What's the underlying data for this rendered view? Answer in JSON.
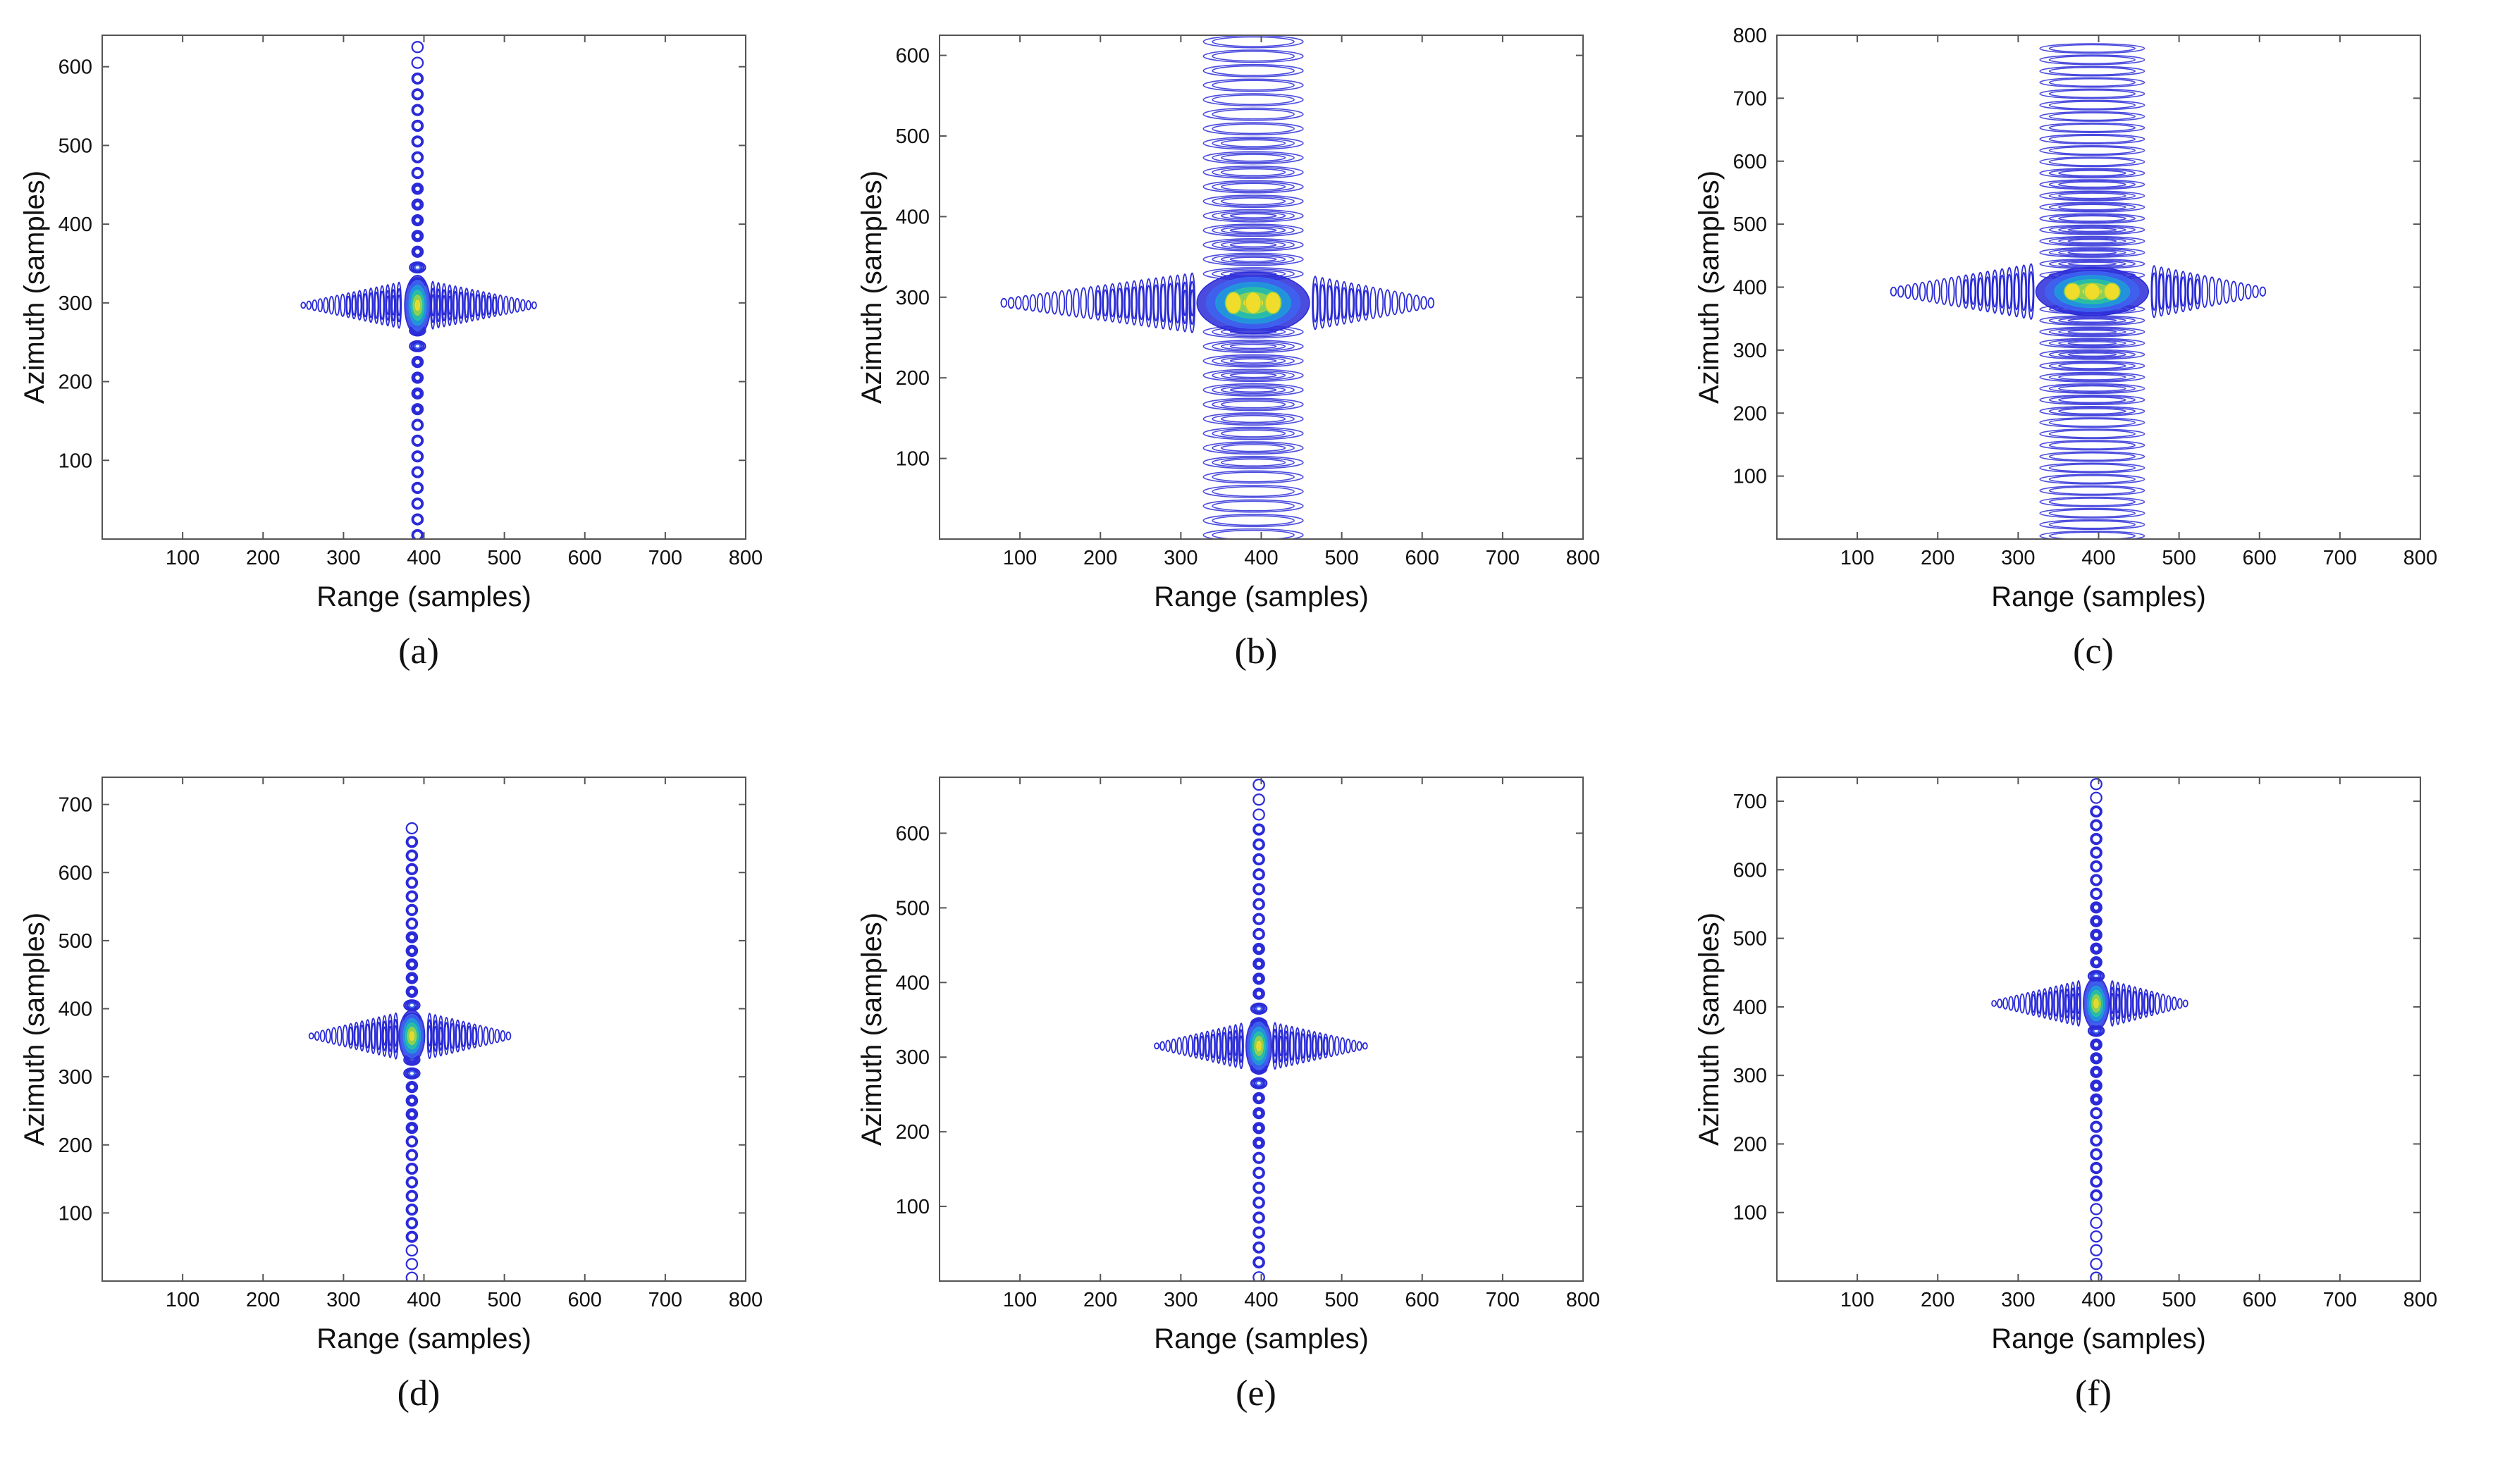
{
  "chart_data": [
    {
      "panel": "a",
      "type": "contour",
      "caption": "(a)",
      "xlabel": "Range (samples)",
      "ylabel": "Azimuth (samples)",
      "xlim": [
        0,
        800
      ],
      "ylim": [
        0,
        640
      ],
      "xticks": [
        100,
        200,
        300,
        400,
        500,
        600,
        700,
        800
      ],
      "yticks": [
        100,
        200,
        300,
        400,
        500,
        600
      ],
      "peak": {
        "x": 392,
        "y": 297
      },
      "range_sidelobe_extent": [
        250,
        540
      ],
      "azimuth_sidelobe_extent": [
        5,
        630
      ],
      "colormap": [
        "#2b2bd8",
        "#3d63f0",
        "#1f9bd8",
        "#29c2a0",
        "#9ad34a",
        "#f0dc2a"
      ]
    },
    {
      "panel": "b",
      "type": "contour",
      "caption": "(b)",
      "xlabel": "Range (samples)",
      "ylabel": "Azimuth (samples)",
      "xlim": [
        0,
        800
      ],
      "ylim": [
        0,
        625
      ],
      "xticks": [
        100,
        200,
        300,
        400,
        500,
        600,
        700,
        800
      ],
      "yticks": [
        100,
        200,
        300,
        400,
        500,
        600
      ],
      "peak": {
        "x": 390,
        "y": 293
      },
      "range_sidelobe_extent": [
        80,
        615
      ],
      "azimuth_sidelobe_extent": [
        5,
        620
      ],
      "colormap": [
        "#2b2bd8",
        "#3d63f0",
        "#1f9bd8",
        "#29c2a0",
        "#9ad34a",
        "#f0dc2a"
      ]
    },
    {
      "panel": "c",
      "type": "contour",
      "caption": "(c)",
      "xlabel": "Range (samples)",
      "ylabel": "Azimuth (samples)",
      "xlim": [
        0,
        800
      ],
      "ylim": [
        0,
        800
      ],
      "xticks": [
        100,
        200,
        300,
        400,
        500,
        600,
        700,
        800
      ],
      "yticks": [
        100,
        200,
        300,
        400,
        500,
        600,
        700,
        800
      ],
      "peak": {
        "x": 392,
        "y": 393
      },
      "range_sidelobe_extent": [
        145,
        605
      ],
      "azimuth_sidelobe_extent": [
        5,
        795
      ],
      "colormap": [
        "#2b2bd8",
        "#3d63f0",
        "#1f9bd8",
        "#29c2a0",
        "#9ad34a",
        "#f0dc2a"
      ]
    },
    {
      "panel": "d",
      "type": "contour",
      "caption": "(d)",
      "xlabel": "Range (samples)",
      "ylabel": "Azimuth (samples)",
      "xlim": [
        0,
        800
      ],
      "ylim": [
        0,
        740
      ],
      "xticks": [
        100,
        200,
        300,
        400,
        500,
        600,
        700,
        800
      ],
      "yticks": [
        100,
        200,
        300,
        400,
        500,
        600,
        700
      ],
      "peak": {
        "x": 385,
        "y": 360
      },
      "range_sidelobe_extent": [
        260,
        510
      ],
      "azimuth_sidelobe_extent": [
        5,
        680
      ],
      "colormap": [
        "#2b2bd8",
        "#3d63f0",
        "#1f9bd8",
        "#29c2a0",
        "#9ad34a",
        "#f0dc2a"
      ]
    },
    {
      "panel": "e",
      "type": "contour",
      "caption": "(e)",
      "xlabel": "Range (samples)",
      "ylabel": "Azimuth (samples)",
      "xlim": [
        0,
        800
      ],
      "ylim": [
        0,
        675
      ],
      "xticks": [
        100,
        200,
        300,
        400,
        500,
        600,
        700,
        800
      ],
      "yticks": [
        100,
        200,
        300,
        400,
        500,
        600
      ],
      "peak": {
        "x": 397,
        "y": 315
      },
      "range_sidelobe_extent": [
        270,
        530
      ],
      "azimuth_sidelobe_extent": [
        5,
        665
      ],
      "colormap": [
        "#2b2bd8",
        "#3d63f0",
        "#1f9bd8",
        "#29c2a0",
        "#9ad34a",
        "#f0dc2a"
      ]
    },
    {
      "panel": "f",
      "type": "contour",
      "caption": "(f)",
      "xlabel": "Range (samples)",
      "ylabel": "Azimuth (samples)",
      "xlim": [
        0,
        800
      ],
      "ylim": [
        0,
        735
      ],
      "xticks": [
        100,
        200,
        300,
        400,
        500,
        600,
        700,
        800
      ],
      "yticks": [
        100,
        200,
        300,
        400,
        500,
        600,
        700
      ],
      "peak": {
        "x": 397,
        "y": 405
      },
      "range_sidelobe_extent": [
        270,
        510
      ],
      "azimuth_sidelobe_extent": [
        5,
        725
      ],
      "colormap": [
        "#2b2bd8",
        "#3d63f0",
        "#1f9bd8",
        "#29c2a0",
        "#9ad34a",
        "#f0dc2a"
      ]
    }
  ]
}
